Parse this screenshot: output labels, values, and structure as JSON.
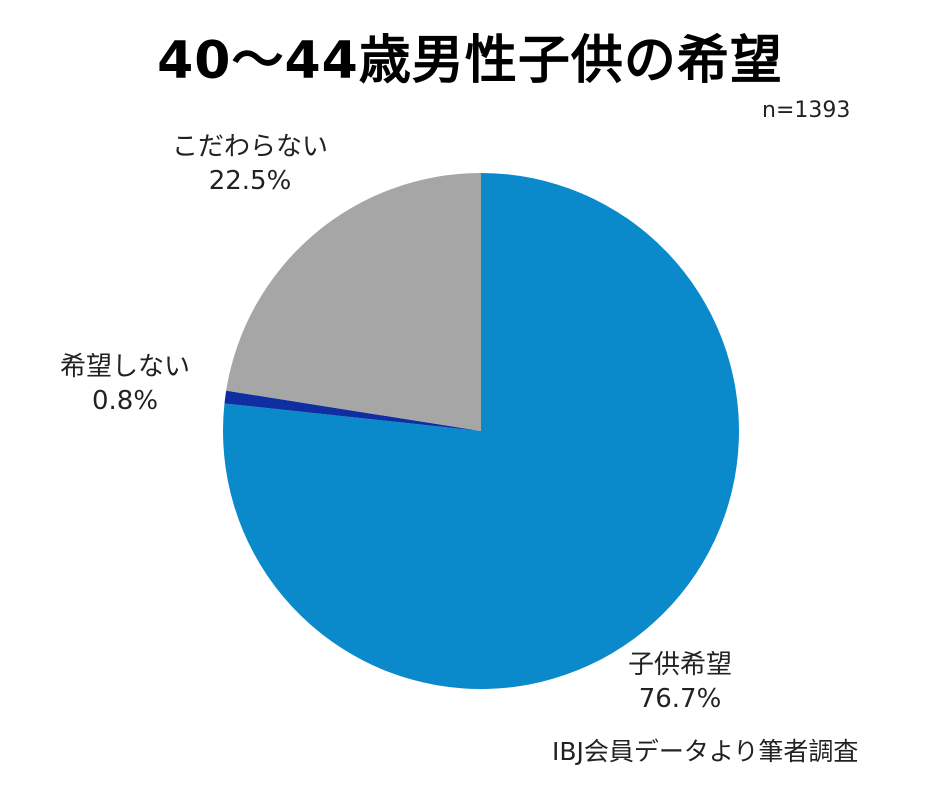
{
  "chart_data": {
    "type": "pie",
    "title": "40〜44歳男性子供の希望",
    "sample_size_label": "n=1393",
    "slices": [
      {
        "name": "子供希望",
        "value": 76.7,
        "value_label": "76.7%",
        "color": "#0a8acb"
      },
      {
        "name": "希望しない",
        "value": 0.8,
        "value_label": "0.8%",
        "color": "#0f2ea2"
      },
      {
        "name": "こだわらない",
        "value": 22.5,
        "value_label": "22.5%",
        "color": "#a6a6a6"
      }
    ],
    "start": "12 o'clock",
    "direction": "clockwise"
  },
  "source_note": "IBJ会員データより筆者調査"
}
